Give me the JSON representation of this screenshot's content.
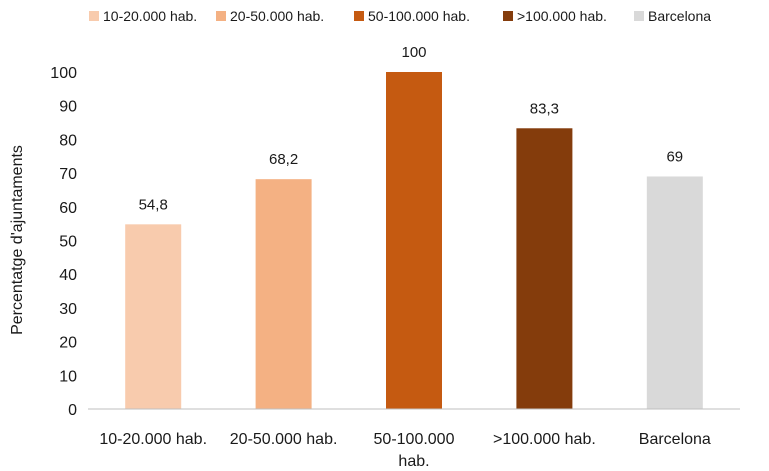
{
  "chart_data": {
    "type": "bar",
    "title": "",
    "xlabel": "",
    "ylabel": "Percentatge d'ajuntaments",
    "categories": [
      "10-20.000 hab.",
      "20-50.000 hab.",
      "50-100.000 hab.",
      ">100.000 hab.",
      "Barcelona"
    ],
    "category_label_lines": [
      [
        "10-20.000 hab."
      ],
      [
        "20-50.000 hab."
      ],
      [
        "50-100.000",
        "hab."
      ],
      [
        ">100.000 hab."
      ],
      [
        "Barcelona"
      ]
    ],
    "values": [
      54.8,
      68.2,
      100,
      83.3,
      69
    ],
    "value_labels": [
      "54,8",
      "68,2",
      "100",
      "83,3",
      "69"
    ],
    "colors": [
      "#F8CBAD",
      "#F4B183",
      "#C55A11",
      "#843C0C",
      "#D9D9D9"
    ],
    "yticks": [
      0,
      10,
      20,
      30,
      40,
      50,
      60,
      70,
      80,
      90,
      100
    ],
    "ylim": [
      0,
      100
    ],
    "grid": false,
    "legend": {
      "position": "top",
      "entries": [
        "10-20.000 hab.",
        "20-50.000 hab.",
        "50-100.000 hab.",
        ">100.000 hab.",
        "Barcelona"
      ]
    }
  }
}
